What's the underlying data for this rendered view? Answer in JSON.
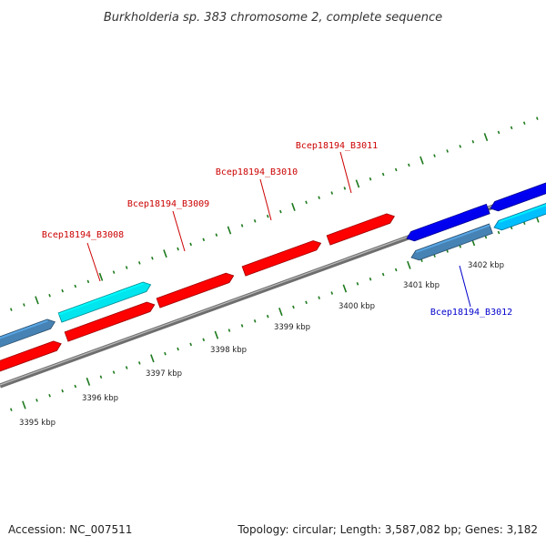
{
  "title": "Burkholderia sp. 383 chromosome 2, complete sequence",
  "footer": {
    "accession": "Accession: NC_007511",
    "summary": "Topology: circular; Length: 3,587,082 bp; Genes: 3,182"
  },
  "colors": {
    "backbone": "#8c8c8c",
    "tick": "#1e7a1e",
    "forward_label": "#cc0000",
    "reverse_label": "#0000cc",
    "leader_line_forward": "#cc0000",
    "leader_line_reverse": "#0000cc"
  },
  "scale_labels": [
    "3395 kbp",
    "3396 kbp",
    "3397 kbp",
    "3398 kbp",
    "3399 kbp",
    "3400 kbp",
    "3401 kbp",
    "3402 kbp"
  ],
  "gene_labels": [
    {
      "text": "Bcep18194_B3008",
      "strand": "forward"
    },
    {
      "text": "Bcep18194_B3009",
      "strand": "forward"
    },
    {
      "text": "Bcep18194_B3010",
      "strand": "forward"
    },
    {
      "text": "Bcep18194_B3011",
      "strand": "forward"
    },
    {
      "text": "Bcep18194_B3012",
      "strand": "reverse"
    }
  ],
  "features": [
    {
      "strand": "forward",
      "color": "#ff0000"
    },
    {
      "strand": "forward",
      "color": "#ff0000"
    },
    {
      "strand": "forward",
      "color": "#ff0000"
    },
    {
      "strand": "forward",
      "color": "#ff0000"
    },
    {
      "strand": "forward",
      "color": "#ff0000"
    },
    {
      "strand": "forward",
      "color": "#00e5ee"
    },
    {
      "strand": "forward",
      "color": "#4682b4"
    },
    {
      "strand": "reverse",
      "color": "#0000ee"
    },
    {
      "strand": "reverse",
      "color": "#0000ee"
    },
    {
      "strand": "reverse",
      "color": "#4682b4"
    },
    {
      "strand": "reverse",
      "color": "#00bfff"
    }
  ]
}
